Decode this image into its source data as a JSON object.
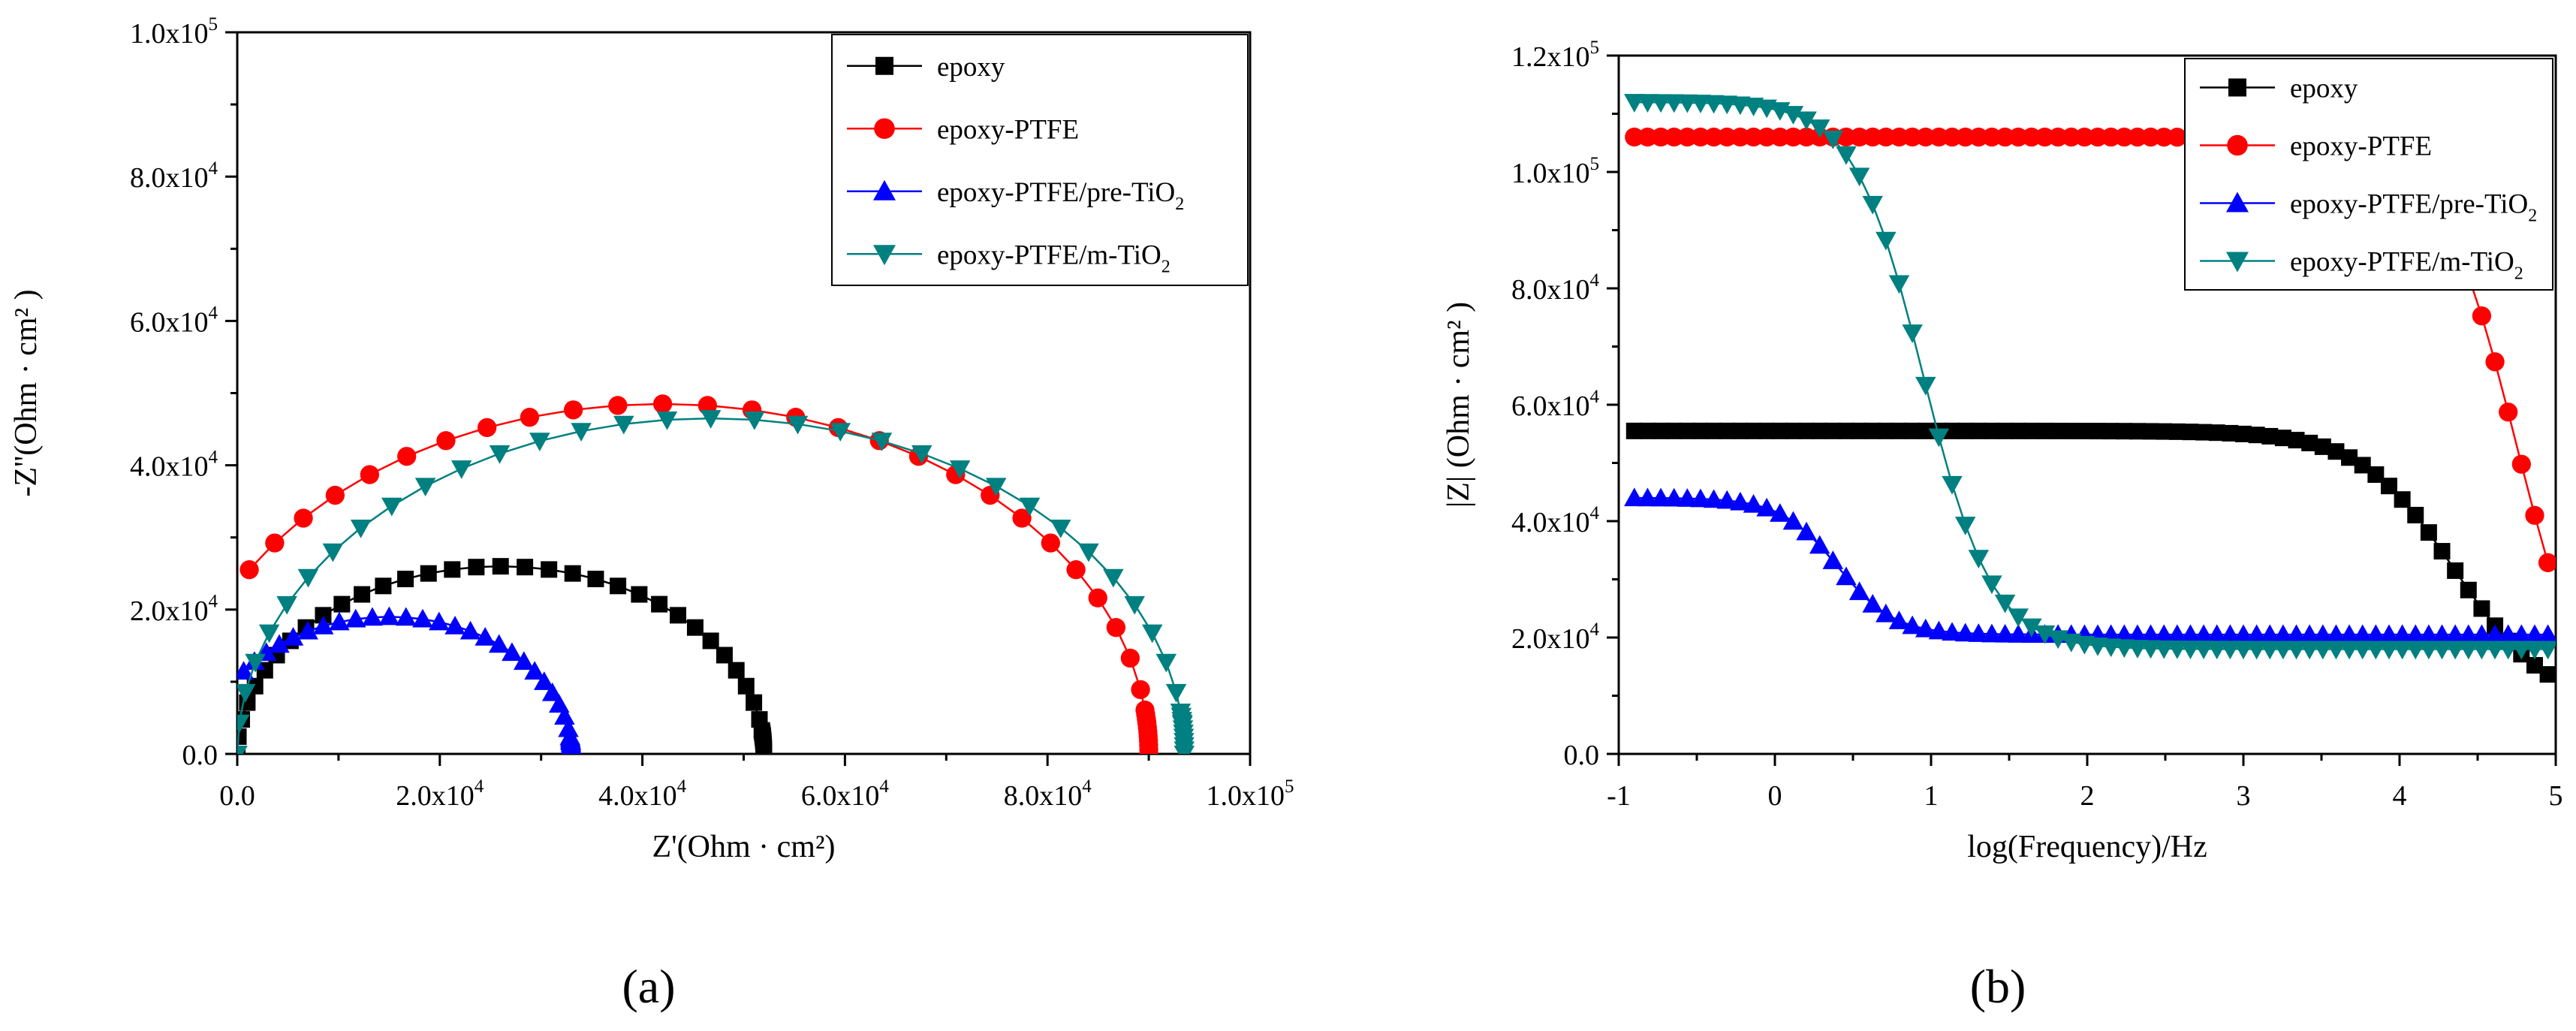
{
  "chart_data": [
    {
      "id": "a",
      "type": "scatter",
      "panel_label": "(a)",
      "xlabel": "Z'(Ohm · cm²)",
      "ylabel": "-Z''(Ohm · cm² )",
      "xlim": [
        0,
        100000
      ],
      "ylim": [
        0,
        100000
      ],
      "xticks": [
        {
          "value": 0,
          "label": "0.0"
        },
        {
          "value": 20000,
          "label": "2.0x10^4"
        },
        {
          "value": 40000,
          "label": "4.0x10^4"
        },
        {
          "value": 60000,
          "label": "6.0x10^4"
        },
        {
          "value": 80000,
          "label": "8.0x10^4"
        },
        {
          "value": 100000,
          "label": "1.0x10^5"
        }
      ],
      "yticks": [
        {
          "value": 0,
          "label": "0.0"
        },
        {
          "value": 20000,
          "label": "2.0x10^4"
        },
        {
          "value": 40000,
          "label": "4.0x10^4"
        },
        {
          "value": 60000,
          "label": "6.0x10^4"
        },
        {
          "value": 80000,
          "label": "8.0x10^4"
        },
        {
          "value": 100000,
          "label": "1.0x10^5"
        }
      ],
      "legend_position": "top-right",
      "series": [
        {
          "name": "epoxy",
          "color": "#000000",
          "marker": "square",
          "shape": "arc",
          "x0": 0,
          "x1": 52000,
          "peak": 26000
        },
        {
          "name": "epoxy-PTFE",
          "color": "#ff0000",
          "marker": "circle",
          "shape": "arc",
          "x0": -6000,
          "x1": 90000,
          "peak": 48500
        },
        {
          "name": "epoxy-PTFE/pre-TiO_2",
          "color": "#0000ff",
          "marker": "triangle-up",
          "shape": "arc",
          "x0": -3000,
          "x1": 33000,
          "peak": 19000
        },
        {
          "name": "epoxy-PTFE/m-TiO_2",
          "color": "#008080",
          "marker": "triangle-down",
          "shape": "arc",
          "x0": 0,
          "x1": 93500,
          "peak": 46500
        }
      ]
    },
    {
      "id": "b",
      "type": "scatter",
      "panel_label": "(b)",
      "xlabel": "log(Frequency)/Hz",
      "ylabel": "|Z| (Ohm · cm² )",
      "xlim": [
        -1,
        5
      ],
      "ylim": [
        0,
        120000
      ],
      "xticks": [
        {
          "value": -1,
          "label": "-1"
        },
        {
          "value": 0,
          "label": "0"
        },
        {
          "value": 1,
          "label": "1"
        },
        {
          "value": 2,
          "label": "2"
        },
        {
          "value": 3,
          "label": "3"
        },
        {
          "value": 4,
          "label": "4"
        },
        {
          "value": 5,
          "label": "5"
        }
      ],
      "yticks": [
        {
          "value": 0,
          "label": "0.0"
        },
        {
          "value": 20000,
          "label": "2.0x10^4"
        },
        {
          "value": 40000,
          "label": "4.0x10^4"
        },
        {
          "value": 60000,
          "label": "6.0x10^4"
        },
        {
          "value": 80000,
          "label": "8.0x10^4"
        },
        {
          "value": 100000,
          "label": "1.0x10^5"
        },
        {
          "value": 120000,
          "label": "1.2x10^5"
        }
      ],
      "legend_position": "top-right",
      "series": [
        {
          "name": "epoxy",
          "color": "#000000",
          "marker": "square",
          "shape": "sigmoid",
          "low": 8000,
          "high": 55500,
          "center": 4.35,
          "width": 0.3
        },
        {
          "name": "epoxy-PTFE",
          "color": "#ff0000",
          "marker": "circle",
          "shape": "sigmoid",
          "low": 0,
          "high": 106000,
          "center": 4.75,
          "width": 0.25
        },
        {
          "name": "epoxy-PTFE/pre-TiO_2",
          "color": "#0000ff",
          "marker": "triangle-up",
          "shape": "sigmoid",
          "low": 20500,
          "high": 44000,
          "center": 0.4,
          "width": 0.18
        },
        {
          "name": "epoxy-PTFE/m-TiO_2",
          "color": "#008080",
          "marker": "triangle-down",
          "shape": "sigmoid",
          "low": 18000,
          "high": 112000,
          "center": 0.95,
          "width": 0.22
        }
      ],
      "x_min": -0.9,
      "x_max": 4.95,
      "points_per_series": 70
    }
  ]
}
